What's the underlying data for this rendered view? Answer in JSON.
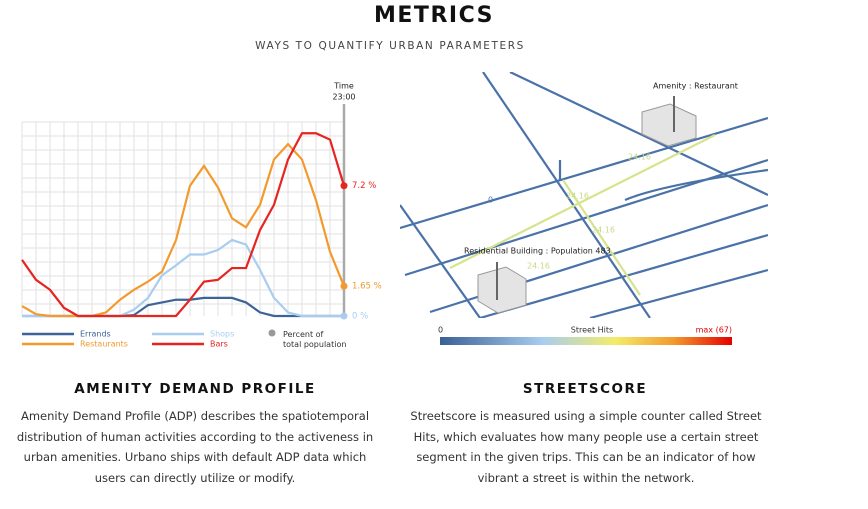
{
  "header": {
    "title": "METRICS",
    "subtitle": "WAYS TO QUANTIFY URBAN PARAMETERS"
  },
  "chart": {
    "type": "line",
    "time_label": "Time",
    "time_value": "23:00",
    "ylim": [
      0,
      11
    ],
    "series": [
      {
        "name": "Errands",
        "color": "#3d6399",
        "values": [
          0,
          0,
          0,
          0,
          0,
          0,
          0,
          0,
          0.05,
          0.6,
          0.75,
          0.9,
          0.9,
          1.0,
          1.0,
          1.0,
          0.75,
          0.2,
          0,
          0,
          0,
          0,
          0,
          0
        ]
      },
      {
        "name": "Shops",
        "color": "#a8cdf0",
        "values": [
          0,
          0,
          0,
          0,
          0,
          0,
          0,
          0,
          0.35,
          1.0,
          2.25,
          2.8,
          3.4,
          3.4,
          3.65,
          4.2,
          3.95,
          2.55,
          1.0,
          0.2,
          0,
          0,
          0,
          0
        ]
      },
      {
        "name": "Restaurants",
        "color": "#f29a2e",
        "values": [
          0.55,
          0.1,
          0,
          0,
          0,
          0,
          0.2,
          0.9,
          1.45,
          1.9,
          2.45,
          4.2,
          7.2,
          8.3,
          7.1,
          5.4,
          4.9,
          6.15,
          8.65,
          9.5,
          8.65,
          6.4,
          3.55,
          1.65
        ]
      },
      {
        "name": "Bars",
        "color": "#e62420",
        "values": [
          3.1,
          2.0,
          1.45,
          0.45,
          0,
          0,
          0,
          0,
          0,
          0,
          0,
          0,
          0.9,
          1.9,
          2.0,
          2.65,
          2.65,
          4.75,
          6.15,
          8.65,
          10.1,
          10.1,
          9.75,
          7.2
        ]
      }
    ],
    "end_labels": [
      {
        "text": "7.2 %",
        "series": 3
      },
      {
        "text": "1.65 %",
        "series": 2
      },
      {
        "text": "0 %",
        "series": 1
      }
    ],
    "population_legend": "Percent of total population"
  },
  "map": {
    "amenity_label": "Amenity : Restaurant",
    "residential_label": "Residential Building : Population 483",
    "street_values": [
      "24.16",
      "24.16",
      "24.16",
      "24.16",
      "0"
    ],
    "colorbar": {
      "min": "0",
      "title": "Street Hits",
      "max": "max (67)"
    }
  },
  "sections": [
    {
      "heading": "AMENITY DEMAND PROFILE",
      "text": "Amenity Demand Profile (ADP) describes the spatiotemporal distribution of human activities according to the activeness in urban amenities. Urbano ships with default ADP data which users can directly utilize or modify."
    },
    {
      "heading": "STREETSCORE",
      "text": "Streetscore is measured using a simple counter called Street Hits, which evaluates how many people use a certain street segment in the given trips. This can be an indicator of how vibrant a street is within the network."
    }
  ]
}
